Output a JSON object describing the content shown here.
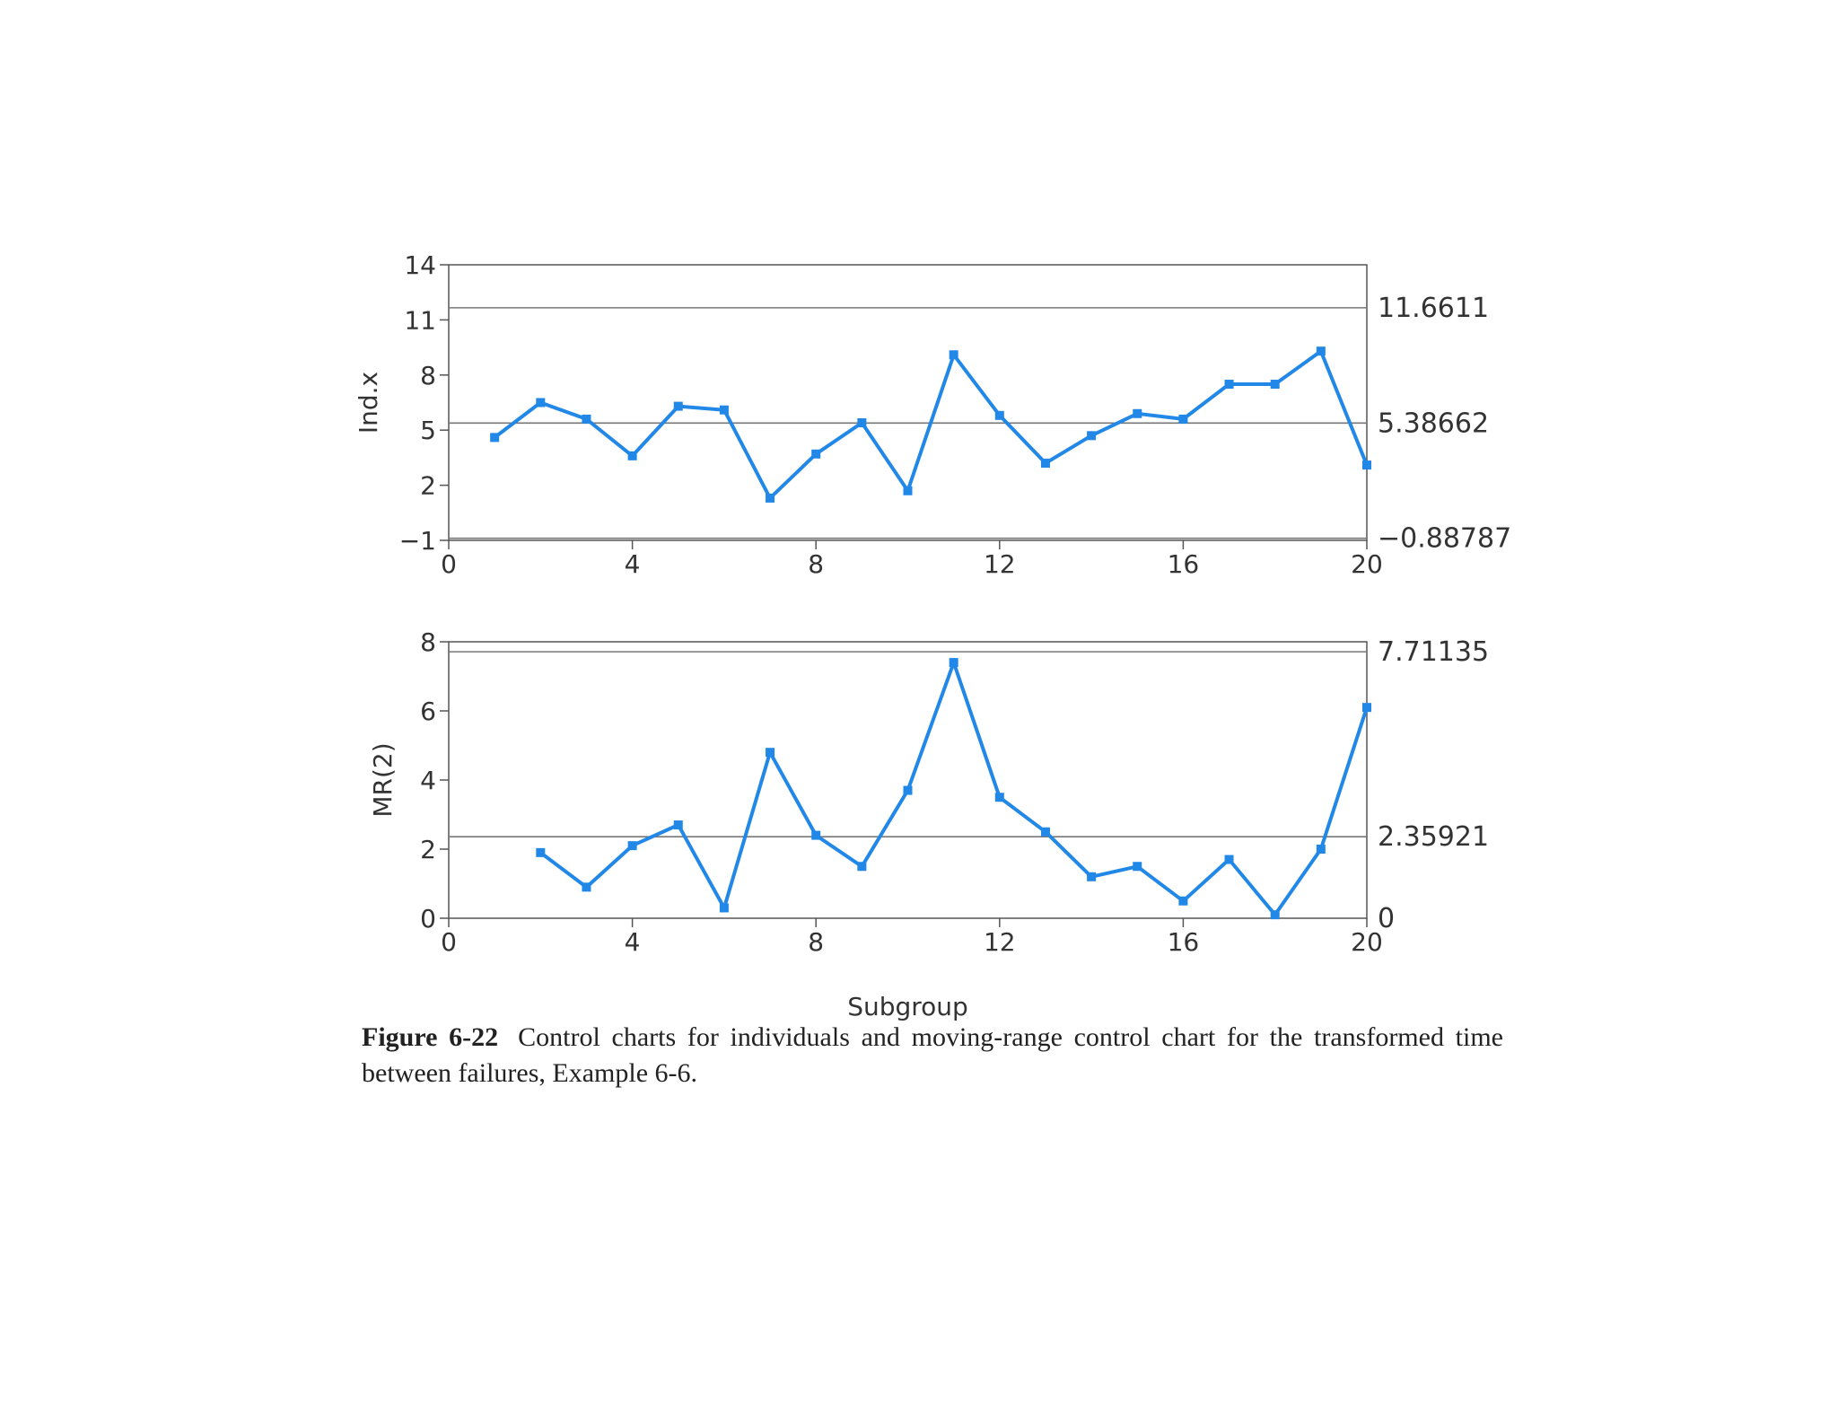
{
  "chart_data": [
    {
      "type": "line",
      "title": "",
      "xlabel": "",
      "ylabel": "Ind.x",
      "xlim": [
        0,
        20
      ],
      "ylim": [
        -1,
        14
      ],
      "x_ticks": [
        0,
        4,
        8,
        12,
        16,
        20
      ],
      "y_ticks": [
        -1,
        2,
        5,
        8,
        11,
        14
      ],
      "control_limits": [
        {
          "name": "UCL",
          "value": 11.6611,
          "label": "11.6611"
        },
        {
          "name": "CL",
          "value": 5.38662,
          "label": "5.38662"
        },
        {
          "name": "LCL",
          "value": -0.88787,
          "label": "−0.88787"
        }
      ],
      "series": [
        {
          "color": "#2288e8",
          "x": [
            1,
            2,
            3,
            4,
            5,
            6,
            7,
            8,
            9,
            10,
            11,
            12,
            13,
            14,
            15,
            16,
            17,
            18,
            19,
            20
          ],
          "y": [
            4.6,
            6.5,
            5.6,
            3.6,
            6.3,
            6.1,
            1.3,
            3.7,
            5.4,
            1.7,
            9.1,
            5.8,
            3.2,
            4.7,
            5.9,
            5.6,
            7.5,
            7.5,
            9.3,
            3.1
          ]
        }
      ]
    },
    {
      "type": "line",
      "title": "",
      "xlabel": "Subgroup",
      "ylabel": "MR(2)",
      "xlim": [
        0,
        20
      ],
      "ylim": [
        0,
        8
      ],
      "x_ticks": [
        0,
        4,
        8,
        12,
        16,
        20
      ],
      "y_ticks": [
        0,
        2,
        4,
        6,
        8
      ],
      "control_limits": [
        {
          "name": "UCL",
          "value": 7.71135,
          "label": "7.71135"
        },
        {
          "name": "CL",
          "value": 2.35921,
          "label": "2.35921"
        },
        {
          "name": "LCL",
          "value": 0,
          "label": "0"
        }
      ],
      "series": [
        {
          "color": "#2288e8",
          "x": [
            2,
            3,
            4,
            5,
            6,
            7,
            8,
            9,
            10,
            11,
            12,
            13,
            14,
            15,
            16,
            17,
            18,
            19,
            20
          ],
          "y": [
            1.9,
            0.9,
            2.1,
            2.7,
            0.3,
            4.8,
            2.4,
            1.5,
            3.7,
            7.4,
            3.5,
            2.5,
            1.2,
            1.5,
            0.5,
            1.7,
            0.1,
            2.0,
            6.1
          ]
        }
      ]
    }
  ],
  "caption": {
    "label": "Figure 6-22",
    "text": "Control charts for individuals and moving-range control chart for the transformed time between failures, Example 6-6."
  }
}
